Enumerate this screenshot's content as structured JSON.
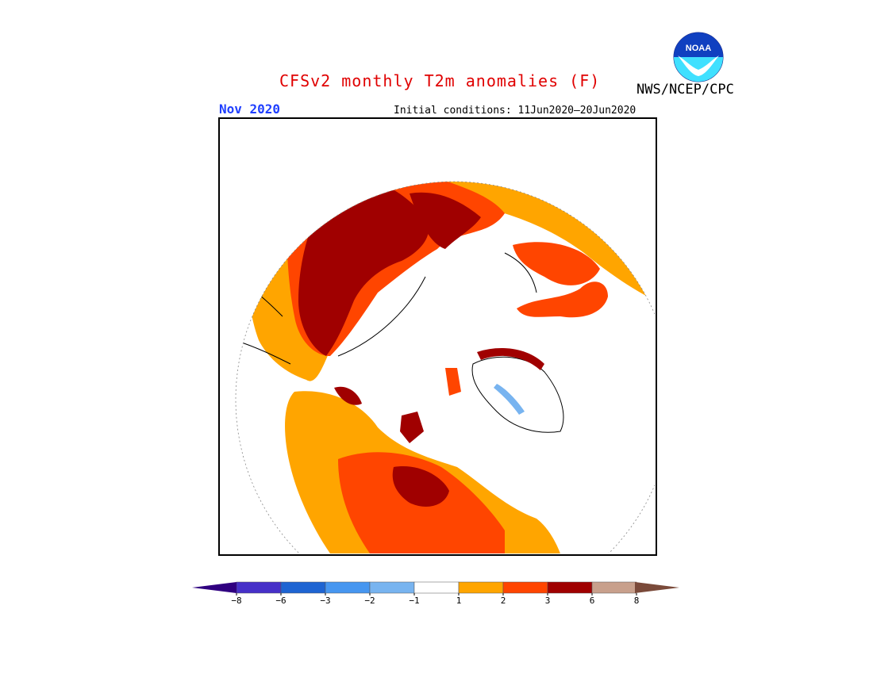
{
  "title": "CFSv2 monthly T2m anomalies (F)",
  "organization": "NWS/NCEP/CPC",
  "logo_text": "NOAA",
  "month_label": "Nov 2020",
  "initial_conditions": "Initial conditions: 11Jun2020–20Jun2020",
  "colors": {
    "below_8": "#300080",
    "m8_m6": "#4630c8",
    "m6_m3": "#1e64d2",
    "m3_m2": "#4696f0",
    "m2_m1": "#78b4f0",
    "neutral": "#ffffff",
    "p1_p2": "#ffa500",
    "p2_p3": "#ff4500",
    "p3_p6": "#a00000",
    "p6_p8": "#c8a08c",
    "above_8": "#7a4a3a",
    "coast": "#000000"
  },
  "colorbar": {
    "ticks": [
      "−8",
      "−6",
      "−3",
      "−2",
      "−1",
      "1",
      "2",
      "3",
      "6",
      "8"
    ],
    "segment_colors": [
      "#4630c8",
      "#1e64d2",
      "#4696f0",
      "#78b4f0",
      "#ffffff",
      "#ffa500",
      "#ff4500",
      "#a00000",
      "#c8a08c"
    ]
  }
}
